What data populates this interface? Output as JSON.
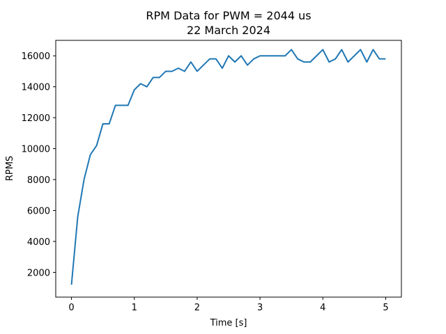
{
  "chart_data": {
    "type": "line",
    "title": "RPM Data for PWM = 2044 us",
    "subtitle": "22 March 2024",
    "xlabel": "Time [s]",
    "ylabel": "RPMS",
    "xlim": [
      -0.25,
      5.25
    ],
    "ylim": [
      400,
      17000
    ],
    "xticks": [
      0,
      1,
      2,
      3,
      4,
      5
    ],
    "yticks": [
      2000,
      4000,
      6000,
      8000,
      10000,
      12000,
      14000,
      16000
    ],
    "grid": false,
    "line_color": "#1f77b4",
    "series": [
      {
        "x": [
          0,
          0.1,
          0.2,
          0.3,
          0.4,
          0.5,
          0.6,
          0.7,
          0.8,
          0.9,
          1.0,
          1.1,
          1.2,
          1.3,
          1.4,
          1.5,
          1.6,
          1.7,
          1.8,
          1.9,
          2.0,
          2.1,
          2.2,
          2.3,
          2.4,
          2.5,
          2.6,
          2.7,
          2.8,
          2.9,
          3.0,
          3.1,
          3.2,
          3.3,
          3.4,
          3.5,
          3.6,
          3.7,
          3.8,
          3.9,
          4.0,
          4.1,
          4.2,
          4.3,
          4.4,
          4.5,
          4.6,
          4.7,
          4.8,
          4.9,
          5.0
        ],
        "values": [
          1200,
          5600,
          8000,
          9600,
          10200,
          11600,
          11600,
          12800,
          12800,
          12800,
          13800,
          14200,
          14000,
          14600,
          14600,
          15000,
          15000,
          15200,
          15000,
          15600,
          15000,
          15400,
          15800,
          15800,
          15200,
          16000,
          15600,
          16000,
          15400,
          15800,
          16000,
          16000,
          16000,
          16000,
          16000,
          16400,
          15800,
          15600,
          15600,
          16000,
          16400,
          15600,
          15800,
          16400,
          15600,
          16000,
          16400,
          15600,
          16400,
          15800,
          15800
        ]
      }
    ]
  }
}
